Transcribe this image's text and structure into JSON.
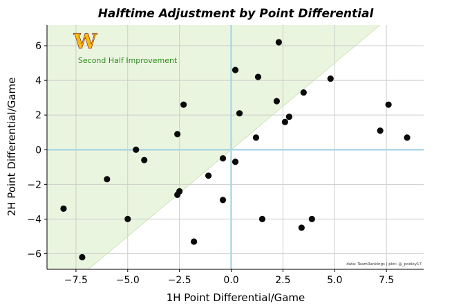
{
  "chart_data": {
    "type": "scatter",
    "title": "Halftime Adjustment by Point Differential",
    "xlabel": "1H Point Differential/Game",
    "ylabel": "2H Point Differential/Game",
    "xlim": [
      -8.9,
      9.3
    ],
    "ylim": [
      -6.9,
      7.2
    ],
    "xticks": [
      -7.5,
      -5.0,
      -2.5,
      0.0,
      2.5,
      5.0,
      7.5
    ],
    "xtick_labels": [
      "−7.5",
      "−5.0",
      "−2.5",
      "0.0",
      "2.5",
      "5.0",
      "7.5"
    ],
    "yticks": [
      -6,
      -4,
      -2,
      0,
      2,
      4,
      6
    ],
    "ytick_labels": [
      "−6",
      "−4",
      "−2",
      "0",
      "2",
      "4",
      "6"
    ],
    "grid": true,
    "region_label": "Second Half Improvement",
    "region": "above the line y = x",
    "logo_text": "W",
    "credit": "data: TeamRankings | plot: @_pooley17",
    "colors": {
      "point": "#0b0b0b",
      "region_fill": "#eaf5df",
      "grid": "#cccccc",
      "zero_lines": "#add8e6",
      "region_label": "#2e8b1e",
      "logo": "#FFB612"
    },
    "points": [
      {
        "x": -8.1,
        "y": -3.4
      },
      {
        "x": -7.2,
        "y": -6.2
      },
      {
        "x": -6.0,
        "y": -1.7
      },
      {
        "x": -5.0,
        "y": -4.0
      },
      {
        "x": -4.6,
        "y": 0.0
      },
      {
        "x": -4.2,
        "y": -0.6
      },
      {
        "x": -2.6,
        "y": 0.9
      },
      {
        "x": -2.6,
        "y": -2.6
      },
      {
        "x": -2.5,
        "y": -2.4
      },
      {
        "x": -2.3,
        "y": 2.6
      },
      {
        "x": -1.8,
        "y": -5.3
      },
      {
        "x": -1.1,
        "y": -1.5
      },
      {
        "x": -0.4,
        "y": -0.5
      },
      {
        "x": -0.4,
        "y": -2.9
      },
      {
        "x": 0.2,
        "y": 4.6
      },
      {
        "x": 0.2,
        "y": -0.7
      },
      {
        "x": 0.4,
        "y": 2.1
      },
      {
        "x": 1.2,
        "y": 0.7
      },
      {
        "x": 1.3,
        "y": 4.2
      },
      {
        "x": 1.5,
        "y": -4.0
      },
      {
        "x": 2.2,
        "y": 2.8
      },
      {
        "x": 2.3,
        "y": 6.2
      },
      {
        "x": 2.6,
        "y": 1.6
      },
      {
        "x": 2.8,
        "y": 1.9
      },
      {
        "x": 3.4,
        "y": -4.5
      },
      {
        "x": 3.5,
        "y": 3.3
      },
      {
        "x": 3.9,
        "y": -4.0
      },
      {
        "x": 4.8,
        "y": 4.1
      },
      {
        "x": 7.2,
        "y": 1.1
      },
      {
        "x": 7.6,
        "y": 2.6
      },
      {
        "x": 8.5,
        "y": 0.7
      }
    ]
  }
}
